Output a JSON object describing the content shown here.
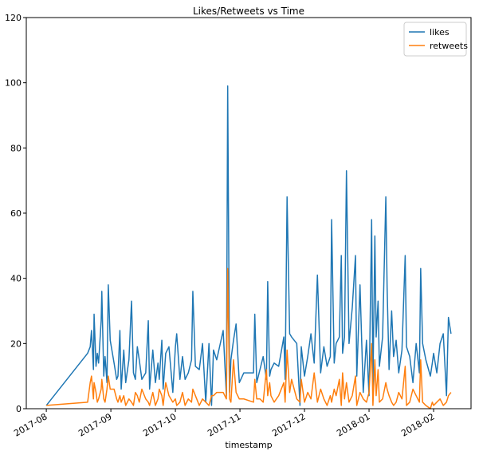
{
  "chart_data": {
    "type": "line",
    "title": "Likes/Retweets vs Time",
    "x_label": "timestamp",
    "x": [
      0.0,
      0.64,
      0.68,
      0.7,
      0.73,
      0.74,
      0.77,
      0.79,
      0.81,
      0.85,
      0.86,
      0.89,
      0.91,
      0.94,
      0.96,
      0.99,
      1.05,
      1.09,
      1.11,
      1.14,
      1.16,
      1.2,
      1.23,
      1.28,
      1.32,
      1.35,
      1.38,
      1.41,
      1.44,
      1.48,
      1.54,
      1.58,
      1.6,
      1.65,
      1.69,
      1.73,
      1.75,
      1.79,
      1.81,
      1.85,
      1.9,
      1.96,
      2.0,
      2.02,
      2.07,
      2.11,
      2.15,
      2.2,
      2.25,
      2.27,
      2.31,
      2.37,
      2.42,
      2.47,
      2.52,
      2.56,
      2.59,
      2.64,
      2.74,
      2.79,
      2.81,
      2.84,
      2.86,
      2.9,
      2.94,
      2.99,
      3.06,
      3.21,
      3.23,
      3.26,
      3.31,
      3.36,
      3.41,
      3.43,
      3.46,
      3.48,
      3.53,
      3.6,
      3.68,
      3.7,
      3.73,
      3.77,
      3.8,
      3.88,
      3.93,
      3.95,
      4.0,
      4.05,
      4.1,
      4.15,
      4.2,
      4.25,
      4.3,
      4.35,
      4.4,
      4.42,
      4.46,
      4.49,
      4.54,
      4.57,
      4.59,
      4.62,
      4.65,
      4.69,
      4.74,
      4.79,
      4.81,
      4.86,
      4.91,
      4.96,
      5.0,
      5.04,
      5.06,
      5.09,
      5.11,
      5.14,
      5.16,
      5.21,
      5.26,
      5.28,
      5.31,
      5.35,
      5.38,
      5.42,
      5.46,
      5.51,
      5.56,
      5.58,
      5.63,
      5.68,
      5.73,
      5.78,
      5.8,
      5.83,
      5.88,
      5.95,
      5.98,
      6.0,
      6.05,
      6.1,
      6.15,
      6.2,
      6.23,
      6.27
    ],
    "series": [
      {
        "name": "likes",
        "color": "#1f77b4",
        "values": [
          1,
          17,
          19,
          24,
          12,
          29,
          13,
          17,
          14,
          27,
          36,
          10,
          16,
          8,
          38,
          21,
          14,
          9,
          10,
          24,
          6,
          18,
          8,
          15,
          33,
          11,
          9,
          19,
          15,
          9,
          11,
          27,
          6,
          18,
          8,
          14,
          9,
          21,
          6,
          17,
          19,
          5,
          19,
          23,
          9,
          16,
          9,
          11,
          15,
          36,
          13,
          12,
          20,
          2,
          20,
          1,
          18,
          15,
          24,
          4,
          99,
          5,
          15,
          21,
          26,
          8,
          11,
          11,
          29,
          8,
          12,
          16,
          9,
          39,
          10,
          12,
          14,
          13,
          22,
          9,
          65,
          23,
          22,
          20,
          1,
          19,
          10,
          16,
          23,
          14,
          41,
          11,
          19,
          13,
          16,
          58,
          14,
          20,
          22,
          47,
          17,
          22,
          73,
          20,
          31,
          47,
          10,
          38,
          5,
          21,
          4,
          58,
          7,
          53,
          22,
          33,
          13,
          22,
          65,
          37,
          12,
          30,
          16,
          21,
          11,
          18,
          47,
          19,
          16,
          8,
          20,
          11,
          43,
          20,
          15,
          10,
          14,
          17,
          11,
          20,
          23,
          4,
          28,
          23
        ]
      },
      {
        "name": "retweets",
        "color": "#ff7f0e",
        "values": [
          1,
          2,
          8,
          10,
          3,
          8,
          5,
          2,
          3,
          6,
          9,
          3,
          2,
          6,
          10,
          6,
          6,
          3,
          2,
          4,
          2,
          4,
          1,
          3,
          2,
          1,
          5,
          4,
          2,
          6,
          3,
          2,
          1,
          5,
          1,
          3,
          6,
          4,
          1,
          8,
          4,
          2,
          3,
          1,
          2,
          5,
          1,
          3,
          2,
          6,
          4,
          1,
          3,
          2,
          1,
          4,
          4,
          5,
          5,
          3,
          43,
          3,
          2,
          15,
          5,
          3,
          3,
          2,
          9,
          3,
          3,
          2,
          12,
          4,
          8,
          4,
          2,
          4,
          8,
          2,
          18,
          5,
          9,
          3,
          2,
          9,
          2,
          5,
          3,
          11,
          2,
          6,
          3,
          1,
          4,
          2,
          6,
          4,
          9,
          1,
          11,
          3,
          8,
          2,
          4,
          10,
          1,
          5,
          3,
          2,
          5,
          20,
          1,
          15,
          4,
          12,
          2,
          3,
          8,
          6,
          4,
          2,
          1,
          2,
          5,
          3,
          13,
          1,
          2,
          6,
          4,
          2,
          15,
          2,
          1,
          0,
          2,
          1,
          2,
          3,
          1,
          2,
          4,
          5
        ]
      }
    ],
    "xlim": [
      -0.31,
      6.58
    ],
    "xticks": [
      {
        "value": 0,
        "label": "2017-08"
      },
      {
        "value": 1,
        "label": "2017-09"
      },
      {
        "value": 2,
        "label": "2017-10"
      },
      {
        "value": 3,
        "label": "2017-11"
      },
      {
        "value": 4,
        "label": "2017-12"
      },
      {
        "value": 5,
        "label": "2018-01"
      },
      {
        "value": 6,
        "label": "2018-02"
      }
    ],
    "ylim": [
      0,
      120
    ],
    "yticks": [
      0,
      20,
      40,
      60,
      80,
      100,
      120
    ],
    "legend": "upper right"
  }
}
